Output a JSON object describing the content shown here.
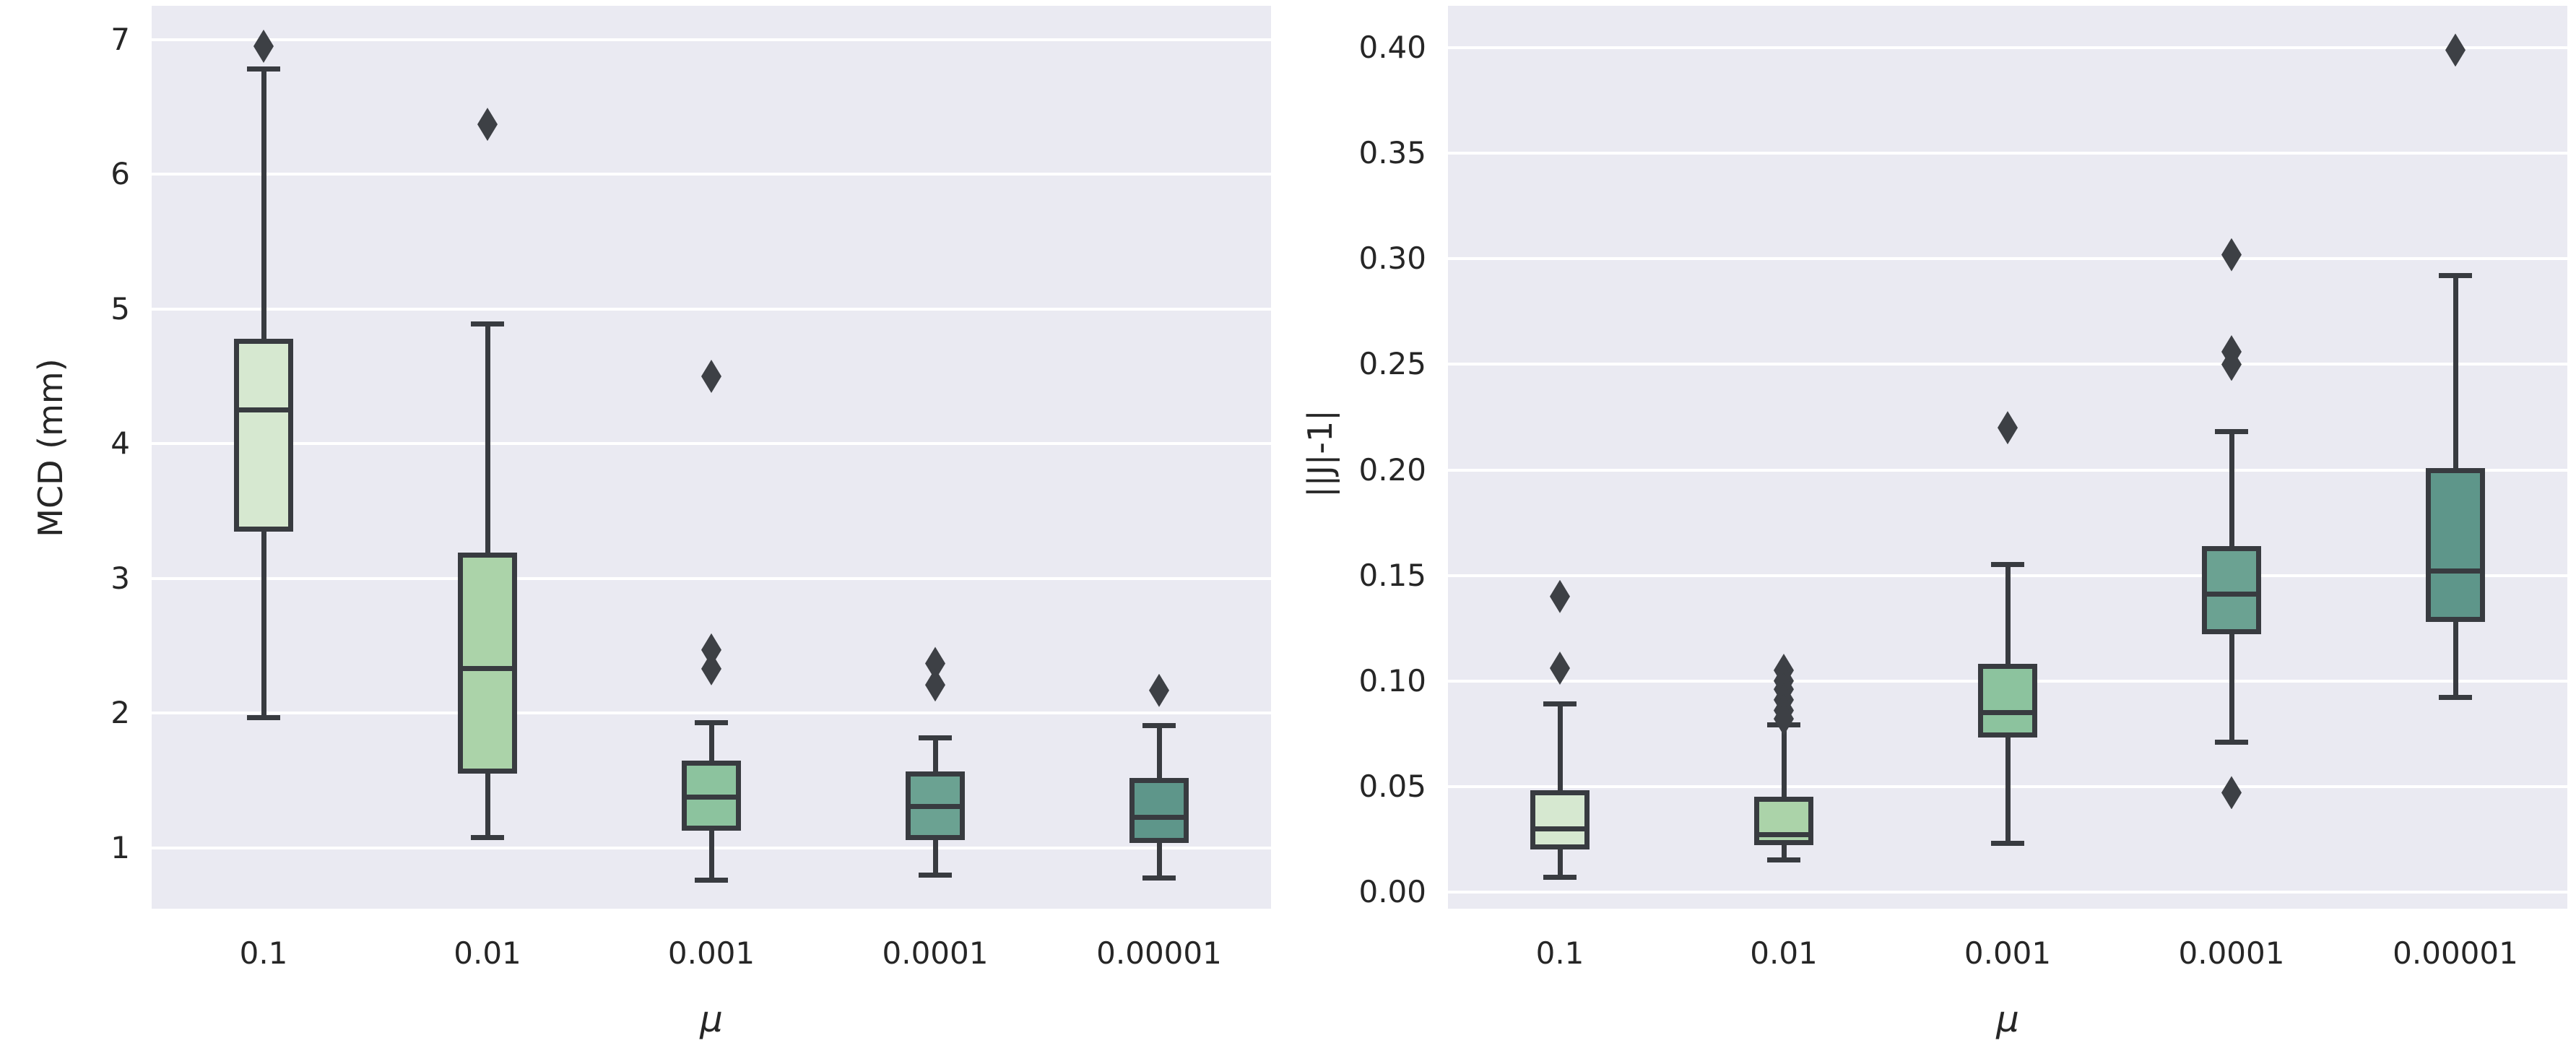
{
  "style": {
    "axes_bg": "#eaeaf2",
    "grid_color": "#ffffff",
    "line_color": "#383b40",
    "tick_color": "#262626",
    "box_colors": [
      "#d6e8d0",
      "#abd3a9",
      "#8cc39e",
      "#6ba292",
      "#5e968a"
    ]
  },
  "chart_data": [
    {
      "type": "box",
      "title": "",
      "xlabel": "μ",
      "ylabel": "MCD (mm)",
      "grid": true,
      "legend_position": "none",
      "categories": [
        "0.1",
        "0.01",
        "0.001",
        "0.0001",
        "0.00001"
      ],
      "ylim": [
        0.55,
        7.25
      ],
      "yticks": [
        {
          "value": 1,
          "label": "1"
        },
        {
          "value": 2,
          "label": "2"
        },
        {
          "value": 3,
          "label": "3"
        },
        {
          "value": 4,
          "label": "4"
        },
        {
          "value": 5,
          "label": "5"
        },
        {
          "value": 6,
          "label": "6"
        },
        {
          "value": 7,
          "label": "7"
        }
      ],
      "series": [
        {
          "category": "0.1",
          "whisker_low": 1.97,
          "q1": 3.35,
          "median": 4.25,
          "q3": 4.78,
          "whisker_high": 6.78,
          "outliers": [
            6.95
          ]
        },
        {
          "category": "0.01",
          "whisker_low": 1.08,
          "q1": 1.55,
          "median": 2.33,
          "q3": 3.19,
          "whisker_high": 4.89,
          "outliers": [
            6.37
          ]
        },
        {
          "category": "0.001",
          "whisker_low": 0.76,
          "q1": 1.13,
          "median": 1.38,
          "q3": 1.65,
          "whisker_high": 1.93,
          "outliers": [
            4.5,
            2.47,
            2.33
          ]
        },
        {
          "category": "0.0001",
          "whisker_low": 0.8,
          "q1": 1.06,
          "median": 1.31,
          "q3": 1.57,
          "whisker_high": 1.82,
          "outliers": [
            2.37,
            2.21
          ]
        },
        {
          "category": "0.00001",
          "whisker_low": 0.78,
          "q1": 1.04,
          "median": 1.23,
          "q3": 1.52,
          "whisker_high": 1.91,
          "outliers": [
            2.17
          ]
        }
      ]
    },
    {
      "type": "box",
      "title": "",
      "xlabel": "μ",
      "ylabel": "||J|-1|",
      "grid": true,
      "legend_position": "none",
      "categories": [
        "0.1",
        "0.01",
        "0.001",
        "0.0001",
        "0.00001"
      ],
      "ylim": [
        -0.008,
        0.42
      ],
      "yticks": [
        {
          "value": 0.0,
          "label": "0.00"
        },
        {
          "value": 0.05,
          "label": "0.05"
        },
        {
          "value": 0.1,
          "label": "0.10"
        },
        {
          "value": 0.15,
          "label": "0.15"
        },
        {
          "value": 0.2,
          "label": "0.20"
        },
        {
          "value": 0.25,
          "label": "0.25"
        },
        {
          "value": 0.3,
          "label": "0.30"
        },
        {
          "value": 0.35,
          "label": "0.35"
        },
        {
          "value": 0.4,
          "label": "0.40"
        }
      ],
      "series": [
        {
          "category": "0.1",
          "whisker_low": 0.007,
          "q1": 0.02,
          "median": 0.03,
          "q3": 0.048,
          "whisker_high": 0.089,
          "outliers": [
            0.14,
            0.106
          ]
        },
        {
          "category": "0.01",
          "whisker_low": 0.015,
          "q1": 0.022,
          "median": 0.027,
          "q3": 0.045,
          "whisker_high": 0.079,
          "outliers": [
            0.105,
            0.1,
            0.096,
            0.091,
            0.086,
            0.082
          ]
        },
        {
          "category": "0.001",
          "whisker_low": 0.023,
          "q1": 0.073,
          "median": 0.085,
          "q3": 0.108,
          "whisker_high": 0.155,
          "outliers": [
            0.22
          ]
        },
        {
          "category": "0.0001",
          "whisker_low": 0.071,
          "q1": 0.122,
          "median": 0.141,
          "q3": 0.164,
          "whisker_high": 0.218,
          "outliers": [
            0.302,
            0.256,
            0.25,
            0.047
          ]
        },
        {
          "category": "0.00001",
          "whisker_low": 0.092,
          "q1": 0.128,
          "median": 0.152,
          "q3": 0.201,
          "whisker_high": 0.292,
          "outliers": [
            0.399
          ]
        }
      ]
    }
  ]
}
